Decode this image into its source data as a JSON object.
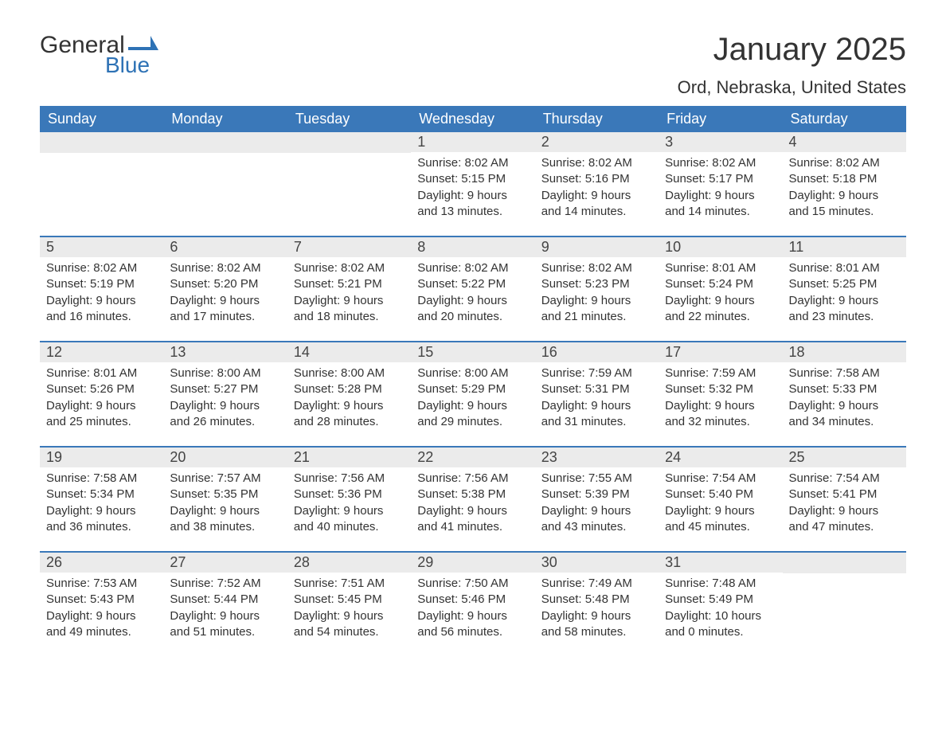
{
  "logo": {
    "text1": "General",
    "text2": "Blue",
    "shape_color": "#2e72b5"
  },
  "title": "January 2025",
  "location": "Ord, Nebraska, United States",
  "colors": {
    "header_bg": "#3a78b9",
    "header_text": "#ffffff",
    "daynum_bg": "#ebebeb",
    "border": "#3a78b9",
    "text": "#333333"
  },
  "weekdays": [
    "Sunday",
    "Monday",
    "Tuesday",
    "Wednesday",
    "Thursday",
    "Friday",
    "Saturday"
  ],
  "weeks": [
    [
      null,
      null,
      null,
      {
        "n": "1",
        "sr": "Sunrise: 8:02 AM",
        "ss": "Sunset: 5:15 PM",
        "d1": "Daylight: 9 hours",
        "d2": "and 13 minutes."
      },
      {
        "n": "2",
        "sr": "Sunrise: 8:02 AM",
        "ss": "Sunset: 5:16 PM",
        "d1": "Daylight: 9 hours",
        "d2": "and 14 minutes."
      },
      {
        "n": "3",
        "sr": "Sunrise: 8:02 AM",
        "ss": "Sunset: 5:17 PM",
        "d1": "Daylight: 9 hours",
        "d2": "and 14 minutes."
      },
      {
        "n": "4",
        "sr": "Sunrise: 8:02 AM",
        "ss": "Sunset: 5:18 PM",
        "d1": "Daylight: 9 hours",
        "d2": "and 15 minutes."
      }
    ],
    [
      {
        "n": "5",
        "sr": "Sunrise: 8:02 AM",
        "ss": "Sunset: 5:19 PM",
        "d1": "Daylight: 9 hours",
        "d2": "and 16 minutes."
      },
      {
        "n": "6",
        "sr": "Sunrise: 8:02 AM",
        "ss": "Sunset: 5:20 PM",
        "d1": "Daylight: 9 hours",
        "d2": "and 17 minutes."
      },
      {
        "n": "7",
        "sr": "Sunrise: 8:02 AM",
        "ss": "Sunset: 5:21 PM",
        "d1": "Daylight: 9 hours",
        "d2": "and 18 minutes."
      },
      {
        "n": "8",
        "sr": "Sunrise: 8:02 AM",
        "ss": "Sunset: 5:22 PM",
        "d1": "Daylight: 9 hours",
        "d2": "and 20 minutes."
      },
      {
        "n": "9",
        "sr": "Sunrise: 8:02 AM",
        "ss": "Sunset: 5:23 PM",
        "d1": "Daylight: 9 hours",
        "d2": "and 21 minutes."
      },
      {
        "n": "10",
        "sr": "Sunrise: 8:01 AM",
        "ss": "Sunset: 5:24 PM",
        "d1": "Daylight: 9 hours",
        "d2": "and 22 minutes."
      },
      {
        "n": "11",
        "sr": "Sunrise: 8:01 AM",
        "ss": "Sunset: 5:25 PM",
        "d1": "Daylight: 9 hours",
        "d2": "and 23 minutes."
      }
    ],
    [
      {
        "n": "12",
        "sr": "Sunrise: 8:01 AM",
        "ss": "Sunset: 5:26 PM",
        "d1": "Daylight: 9 hours",
        "d2": "and 25 minutes."
      },
      {
        "n": "13",
        "sr": "Sunrise: 8:00 AM",
        "ss": "Sunset: 5:27 PM",
        "d1": "Daylight: 9 hours",
        "d2": "and 26 minutes."
      },
      {
        "n": "14",
        "sr": "Sunrise: 8:00 AM",
        "ss": "Sunset: 5:28 PM",
        "d1": "Daylight: 9 hours",
        "d2": "and 28 minutes."
      },
      {
        "n": "15",
        "sr": "Sunrise: 8:00 AM",
        "ss": "Sunset: 5:29 PM",
        "d1": "Daylight: 9 hours",
        "d2": "and 29 minutes."
      },
      {
        "n": "16",
        "sr": "Sunrise: 7:59 AM",
        "ss": "Sunset: 5:31 PM",
        "d1": "Daylight: 9 hours",
        "d2": "and 31 minutes."
      },
      {
        "n": "17",
        "sr": "Sunrise: 7:59 AM",
        "ss": "Sunset: 5:32 PM",
        "d1": "Daylight: 9 hours",
        "d2": "and 32 minutes."
      },
      {
        "n": "18",
        "sr": "Sunrise: 7:58 AM",
        "ss": "Sunset: 5:33 PM",
        "d1": "Daylight: 9 hours",
        "d2": "and 34 minutes."
      }
    ],
    [
      {
        "n": "19",
        "sr": "Sunrise: 7:58 AM",
        "ss": "Sunset: 5:34 PM",
        "d1": "Daylight: 9 hours",
        "d2": "and 36 minutes."
      },
      {
        "n": "20",
        "sr": "Sunrise: 7:57 AM",
        "ss": "Sunset: 5:35 PM",
        "d1": "Daylight: 9 hours",
        "d2": "and 38 minutes."
      },
      {
        "n": "21",
        "sr": "Sunrise: 7:56 AM",
        "ss": "Sunset: 5:36 PM",
        "d1": "Daylight: 9 hours",
        "d2": "and 40 minutes."
      },
      {
        "n": "22",
        "sr": "Sunrise: 7:56 AM",
        "ss": "Sunset: 5:38 PM",
        "d1": "Daylight: 9 hours",
        "d2": "and 41 minutes."
      },
      {
        "n": "23",
        "sr": "Sunrise: 7:55 AM",
        "ss": "Sunset: 5:39 PM",
        "d1": "Daylight: 9 hours",
        "d2": "and 43 minutes."
      },
      {
        "n": "24",
        "sr": "Sunrise: 7:54 AM",
        "ss": "Sunset: 5:40 PM",
        "d1": "Daylight: 9 hours",
        "d2": "and 45 minutes."
      },
      {
        "n": "25",
        "sr": "Sunrise: 7:54 AM",
        "ss": "Sunset: 5:41 PM",
        "d1": "Daylight: 9 hours",
        "d2": "and 47 minutes."
      }
    ],
    [
      {
        "n": "26",
        "sr": "Sunrise: 7:53 AM",
        "ss": "Sunset: 5:43 PM",
        "d1": "Daylight: 9 hours",
        "d2": "and 49 minutes."
      },
      {
        "n": "27",
        "sr": "Sunrise: 7:52 AM",
        "ss": "Sunset: 5:44 PM",
        "d1": "Daylight: 9 hours",
        "d2": "and 51 minutes."
      },
      {
        "n": "28",
        "sr": "Sunrise: 7:51 AM",
        "ss": "Sunset: 5:45 PM",
        "d1": "Daylight: 9 hours",
        "d2": "and 54 minutes."
      },
      {
        "n": "29",
        "sr": "Sunrise: 7:50 AM",
        "ss": "Sunset: 5:46 PM",
        "d1": "Daylight: 9 hours",
        "d2": "and 56 minutes."
      },
      {
        "n": "30",
        "sr": "Sunrise: 7:49 AM",
        "ss": "Sunset: 5:48 PM",
        "d1": "Daylight: 9 hours",
        "d2": "and 58 minutes."
      },
      {
        "n": "31",
        "sr": "Sunrise: 7:48 AM",
        "ss": "Sunset: 5:49 PM",
        "d1": "Daylight: 10 hours",
        "d2": "and 0 minutes."
      },
      null
    ]
  ]
}
